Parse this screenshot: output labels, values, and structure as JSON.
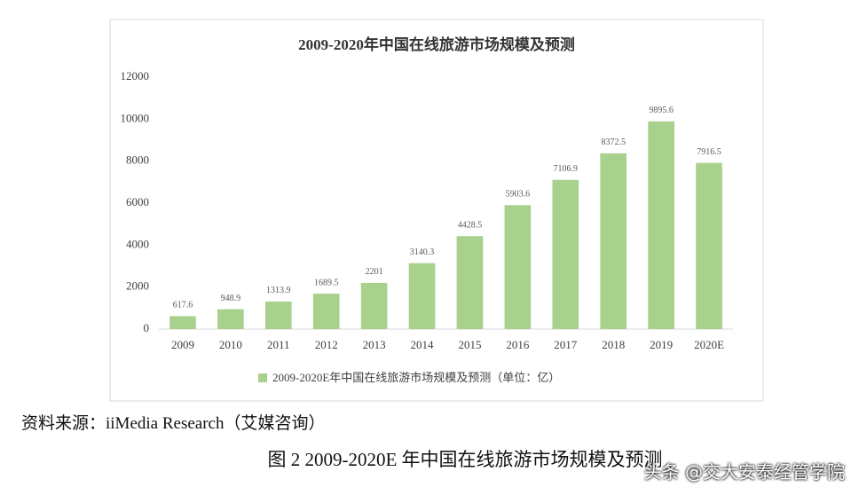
{
  "chart_data": {
    "type": "bar",
    "title": "2009-2020年中国在线旅游市场规模及预测",
    "categories": [
      "2009",
      "2010",
      "2011",
      "2012",
      "2013",
      "2014",
      "2015",
      "2016",
      "2017",
      "2018",
      "2019",
      "2020E"
    ],
    "series": [
      {
        "name": "2009-2020E年中国在线旅游市场规模及预测（单位：亿）",
        "color": "#a9d18e",
        "values": [
          617.6,
          948.9,
          1313.9,
          1689.5,
          2201,
          3140.3,
          4428.5,
          5903.6,
          7106.9,
          8372.5,
          9895.6,
          7916.5
        ]
      }
    ],
    "ylim": [
      0,
      12000
    ],
    "yticks": [
      0,
      2000,
      4000,
      6000,
      8000,
      10000,
      12000
    ],
    "grid": false,
    "legend": "bottom"
  },
  "source": "资料来源：iiMedia Research（艾媒咨询）",
  "caption": "图 2  2009-2020E 年中国在线旅游市场规模及预测",
  "watermark": "头条 @交大安泰经管学院"
}
